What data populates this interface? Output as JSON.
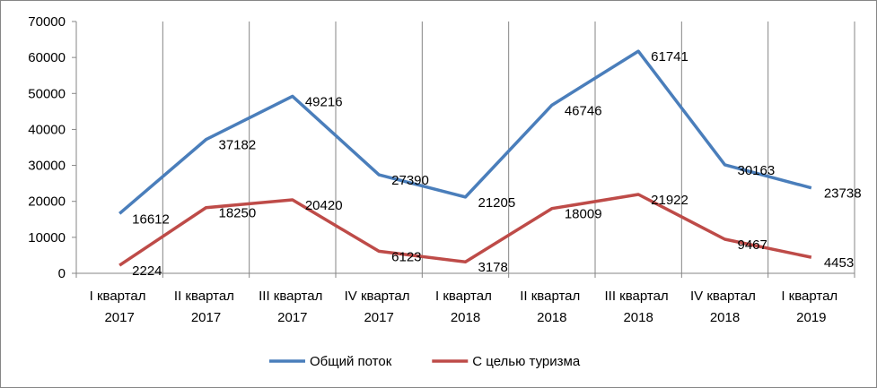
{
  "chart_data": {
    "type": "line",
    "categories": [
      "I квартал 2017",
      "II квартал 2017",
      "III квартал 2017",
      "IV квартал 2017",
      "I квартал 2018",
      "II квартал 2018",
      "III квартал 2018",
      "IV квартал 2018",
      "I квартал 2019"
    ],
    "series": [
      {
        "name": "Общий поток",
        "color": "#4a7ebb",
        "values": [
          16612,
          37182,
          49216,
          27390,
          21205,
          46746,
          61741,
          30163,
          23738
        ]
      },
      {
        "name": "С целью туризма",
        "color": "#be4b48",
        "values": [
          2224,
          18250,
          20420,
          6123,
          3178,
          18009,
          21922,
          9467,
          4453
        ]
      }
    ],
    "ylim": [
      0,
      70000
    ],
    "yticks": [
      0,
      10000,
      20000,
      30000,
      40000,
      50000,
      60000,
      70000
    ],
    "legend": "bottom"
  }
}
